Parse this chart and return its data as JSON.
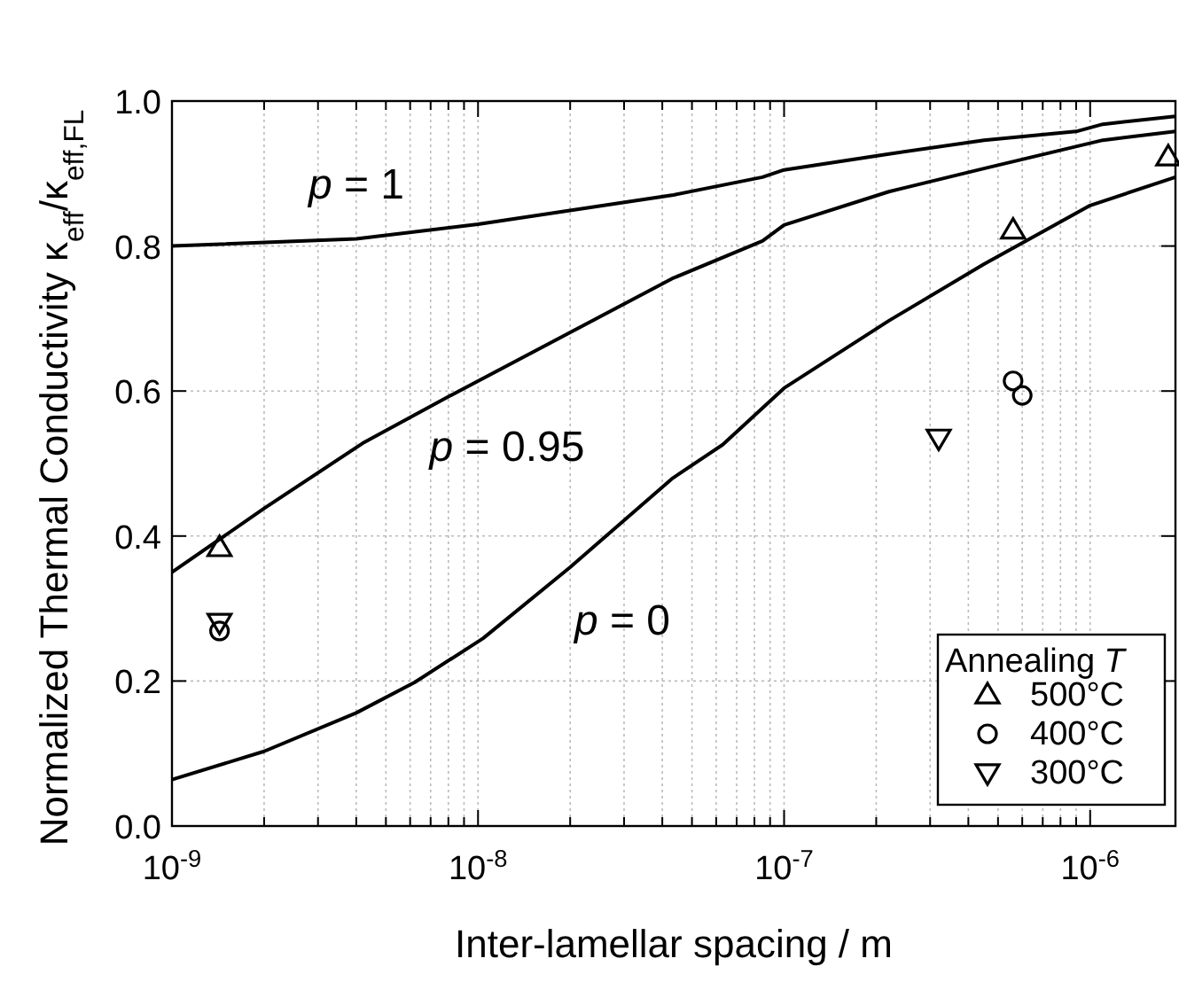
{
  "chart_data": {
    "type": "line",
    "xlabel": "Inter-lamellar spacing / m",
    "ylabel": "Normalized Thermal Conductivity κ$_{eff}$/κ$_{eff,FL}$",
    "legend_title": "Annealing T",
    "log": "x",
    "grid": true,
    "legend": "bottom right",
    "xlim": [
      1e-09,
      1.9e-06
    ],
    "ylim": [
      0,
      1
    ],
    "xticks": [
      {
        "value": 1e-09,
        "label": "10$^{-9}$"
      },
      {
        "value": 2e-09,
        "label": null
      },
      {
        "value": 3e-09,
        "label": null
      },
      {
        "value": 4e-09,
        "label": null
      },
      {
        "value": 5e-09,
        "label": null
      },
      {
        "value": 6e-09,
        "label": null
      },
      {
        "value": 7e-09,
        "label": null
      },
      {
        "value": 8e-09,
        "label": null
      },
      {
        "value": 9e-09,
        "label": null
      },
      {
        "value": 1e-08,
        "label": "10$^{-8}$"
      },
      {
        "value": 2e-08,
        "label": null
      },
      {
        "value": 3e-08,
        "label": null
      },
      {
        "value": 4e-08,
        "label": null
      },
      {
        "value": 5e-08,
        "label": null
      },
      {
        "value": 6e-08,
        "label": null
      },
      {
        "value": 7e-08,
        "label": null
      },
      {
        "value": 8e-08,
        "label": null
      },
      {
        "value": 9e-08,
        "label": null
      },
      {
        "value": 1e-07,
        "label": "10$^{-7}$"
      },
      {
        "value": 2e-07,
        "label": null
      },
      {
        "value": 3e-07,
        "label": null
      },
      {
        "value": 4e-07,
        "label": null
      },
      {
        "value": 5e-07,
        "label": null
      },
      {
        "value": 6e-07,
        "label": null
      },
      {
        "value": 7e-07,
        "label": null
      },
      {
        "value": 8e-07,
        "label": null
      },
      {
        "value": 9e-07,
        "label": null
      },
      {
        "value": 1e-06,
        "label": "10$^{-6}$"
      }
    ],
    "yticks": [
      {
        "value": 0,
        "label": "0.0"
      },
      {
        "value": 0.2,
        "label": "0.2"
      },
      {
        "value": 0.4,
        "label": "0.4"
      },
      {
        "value": 0.6,
        "label": "0.6"
      },
      {
        "value": 0.8,
        "label": "0.8"
      },
      {
        "value": 1,
        "label": "1.0"
      }
    ],
    "series": [
      {
        "color": "#000000",
        "marker": "none",
        "line_style": "solid",
        "x": [
          1e-09,
          4e-09,
          1e-08,
          4.3e-08,
          8.5e-08,
          1e-07,
          2.2e-07,
          4.5e-07,
          9e-07,
          1.1e-06,
          1.9e-06
        ],
        "values": [
          0.8,
          0.81,
          0.83,
          0.87,
          0.895,
          0.905,
          0.927,
          0.946,
          0.958,
          0.968,
          0.979
        ]
      },
      {
        "color": "#000000",
        "marker": "none",
        "line_style": "solid",
        "x": [
          1e-09,
          2e-09,
          4.2e-09,
          8.4e-09,
          4.3e-08,
          8.5e-08,
          1e-07,
          2.2e-07,
          4.5e-07,
          1.1e-06,
          1.9e-06
        ],
        "values": [
          0.35,
          0.438,
          0.528,
          0.597,
          0.755,
          0.807,
          0.829,
          0.875,
          0.907,
          0.946,
          0.958
        ]
      },
      {
        "color": "#000000",
        "marker": "none",
        "line_style": "solid",
        "x": [
          1e-09,
          2e-09,
          4e-09,
          6.2e-09,
          1.04e-08,
          2e-08,
          4.3e-08,
          6.3e-08,
          1e-07,
          2.2e-07,
          4.5e-07,
          1e-06,
          1.9e-06
        ],
        "values": [
          0.064,
          0.103,
          0.156,
          0.198,
          0.259,
          0.357,
          0.479,
          0.526,
          0.604,
          0.697,
          0.775,
          0.856,
          0.895
        ]
      },
      {
        "type": "scatter",
        "name": "500°C",
        "color": "#000000",
        "marker": "triangle",
        "x": [
          1.43e-09,
          5.6e-07,
          1.8e-06
        ],
        "values": [
          0.384,
          0.822,
          0.923
        ]
      },
      {
        "type": "scatter",
        "name": "400°C",
        "color": "#000000",
        "marker": "circle",
        "x": [
          1.43e-09,
          5.6e-07,
          6e-07
        ],
        "values": [
          0.269,
          0.614,
          0.594
        ]
      },
      {
        "type": "scatter",
        "name": "300°C",
        "color": "#000000",
        "marker": "triangle-down",
        "x": [
          1.43e-09,
          3.2e-07
        ],
        "values": [
          0.281,
          0.535
        ]
      }
    ],
    "annotations": [
      "p = 1",
      "p = 0.95",
      "p = 0"
    ]
  }
}
